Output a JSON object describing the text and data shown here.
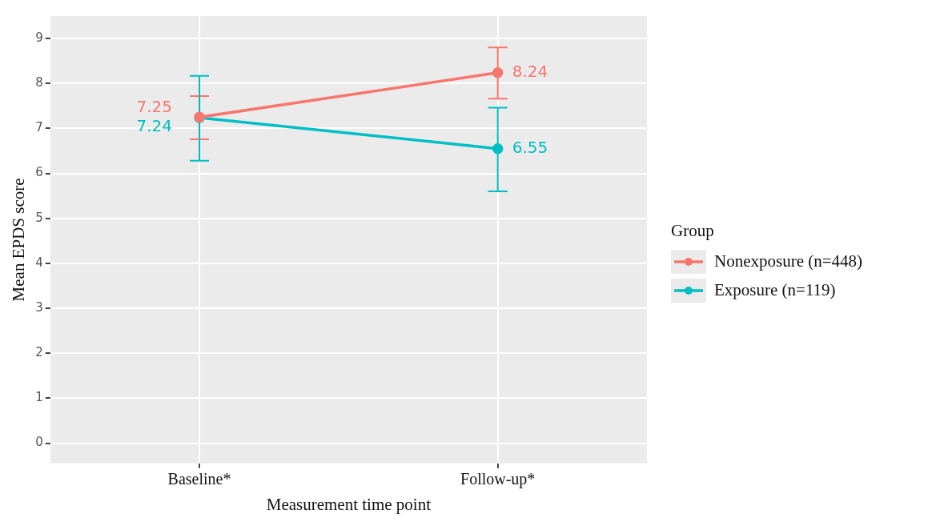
{
  "chart_data": {
    "type": "line",
    "xlabel": "Measurement time point",
    "ylabel": "Mean EPDS score",
    "legend_title": "Group",
    "categories": [
      "Baseline*",
      "Follow-up*"
    ],
    "series": [
      {
        "name": "Nonexposure (n=448)",
        "color": "#f8766d",
        "values": [
          7.25,
          8.24
        ],
        "errors": [
          [
            6.76,
            7.72
          ],
          [
            7.66,
            8.8
          ]
        ]
      },
      {
        "name": "Exposure (n=119)",
        "color": "#00bfc4",
        "values": [
          7.24,
          6.55
        ],
        "errors": [
          [
            6.28,
            8.17
          ],
          [
            5.6,
            7.46
          ]
        ]
      }
    ],
    "ylim": [
      -0.45,
      9.5
    ],
    "yticks": [
      0,
      1,
      2,
      3,
      4,
      5,
      6,
      7,
      8,
      9
    ],
    "grid": true,
    "legend": "right",
    "marker": "circle",
    "line_style": "solid",
    "data_labels": true
  }
}
